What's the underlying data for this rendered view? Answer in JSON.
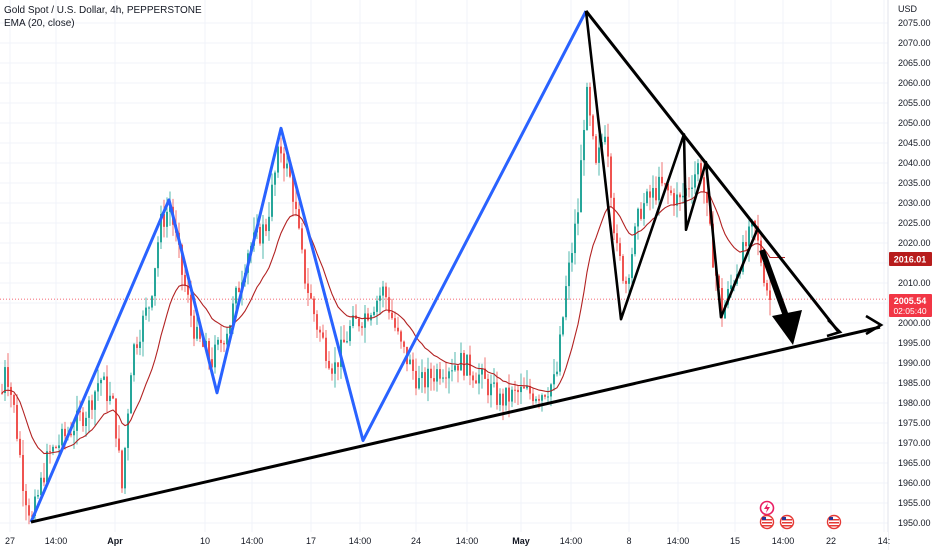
{
  "legend": {
    "title": "Gold Spot / U.S. Dollar, 4h, PEPPERSTONE",
    "indicator": "EMA (20, close)"
  },
  "axis": {
    "currency": "USD",
    "price_tag": "2016.01",
    "last_price": "2005.54",
    "countdown": "02:05:40"
  },
  "colors": {
    "up": "#26a69a",
    "down": "#ef5350",
    "ema": "#b22222",
    "wave": "#2962ff",
    "trend": "#000000",
    "ema_tag": "#b71c1c",
    "last_tag": "#f23645"
  },
  "icons": [
    "lightning-icon",
    "us-flag-icon",
    "us-flag-icon",
    "us-flag-icon"
  ],
  "chart_data": {
    "type": "candlestick",
    "y_ticks": [
      "2075.00",
      "2070.00",
      "2065.00",
      "2060.00",
      "2055.00",
      "2050.00",
      "2045.00",
      "2040.00",
      "2035.00",
      "2030.00",
      "2025.00",
      "2020.00",
      "2015.00",
      "2010.00",
      "2005.00",
      "2000.00",
      "1995.00",
      "1990.00",
      "1985.00",
      "1980.00",
      "1975.00",
      "1970.00",
      "1965.00",
      "1960.00",
      "1955.00",
      "1950.00"
    ],
    "ylim": [
      1948,
      2080
    ],
    "x_ticks": [
      "27",
      "14:00",
      "Apr",
      "10",
      "14:00",
      "17",
      "14:00",
      "24",
      "14:00",
      "May",
      "14:00",
      "8",
      "14:00",
      "15",
      "14:00",
      "22",
      "14:"
    ],
    "wave_price": [
      1949.5,
      2030.5,
      1982.0,
      2048.5,
      1970.0,
      2078.0
    ],
    "zigzag_price": [
      2078.0,
      2000.5,
      2047.0,
      2023.0,
      2040.0,
      2001.0,
      2023.5
    ],
    "resistance_price": [
      2078.0,
      1997.5
    ],
    "support_price": [
      1949.5,
      1998.5
    ],
    "current_price": 2005.54,
    "ema_value": 2016.01
  }
}
